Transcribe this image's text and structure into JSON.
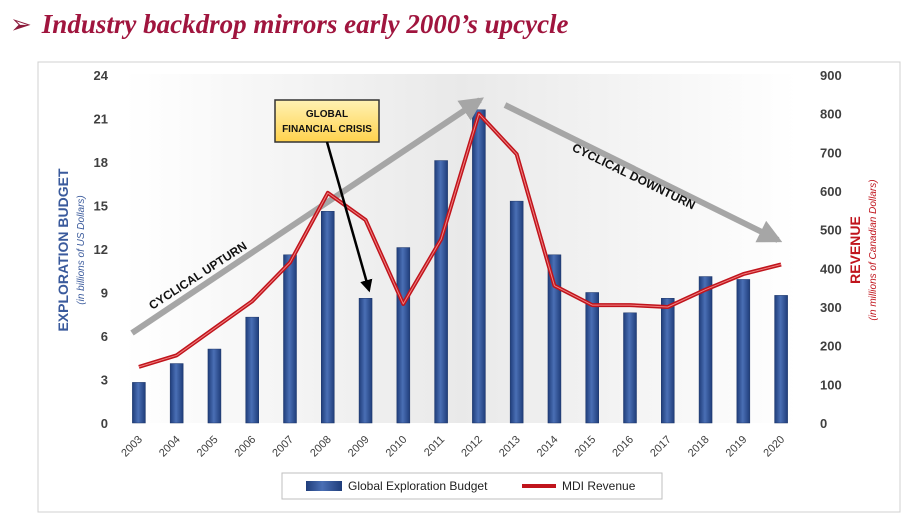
{
  "slide": {
    "bullet": "➢",
    "title": "Industry backdrop mirrors early 2000’s upcycle"
  },
  "colors": {
    "title": "#a0153e",
    "bar": "#2e4f8f",
    "line": "#c0141c",
    "left_axis_title": "#3a5a9c",
    "right_axis_title": "#c0141c",
    "arrow": "#a6a6a6",
    "callout_fill": "#ffd966"
  },
  "chart_data": {
    "type": "bar+line",
    "x": [
      "2003",
      "2004",
      "2005",
      "2006",
      "2007",
      "2008",
      "2009",
      "2010",
      "2011",
      "2012",
      "2013",
      "2014",
      "2015",
      "2016",
      "2017",
      "2018",
      "2019",
      "2020"
    ],
    "series": [
      {
        "name": "Global Exploration Budget",
        "type": "bar",
        "axis": "left",
        "values": [
          2.8,
          4.1,
          5.1,
          7.3,
          11.6,
          14.6,
          8.6,
          12.1,
          18.1,
          21.6,
          15.3,
          11.6,
          9.0,
          7.6,
          8.6,
          10.1,
          9.9,
          8.8
        ]
      },
      {
        "name": "MDI Revenue",
        "type": "line",
        "axis": "right",
        "values": [
          145,
          175,
          245,
          315,
          415,
          595,
          525,
          308,
          475,
          800,
          695,
          355,
          305,
          305,
          300,
          345,
          385,
          410
        ]
      }
    ],
    "left_axis": {
      "title": "EXPLORATION BUDGET",
      "subtitle": "(in billions of US Dollars)",
      "range": [
        0,
        24
      ],
      "ticks": [
        "0",
        "3",
        "6",
        "9",
        "12",
        "15",
        "18",
        "21",
        "24"
      ]
    },
    "right_axis": {
      "title": "REVENUE",
      "subtitle": "(in millions of Canadian Dollars)",
      "range": [
        0,
        900
      ],
      "ticks": [
        "0",
        "100",
        "200",
        "300",
        "400",
        "500",
        "600",
        "700",
        "800",
        "900"
      ]
    },
    "annotations": {
      "upturn": "CYCLICAL UPTURN",
      "downturn": "CYCLICAL DOWNTURN",
      "crisis_line1": "GLOBAL",
      "crisis_line2": "FINANCIAL CRISIS"
    },
    "legend_position": "bottom-center",
    "grid": false
  }
}
